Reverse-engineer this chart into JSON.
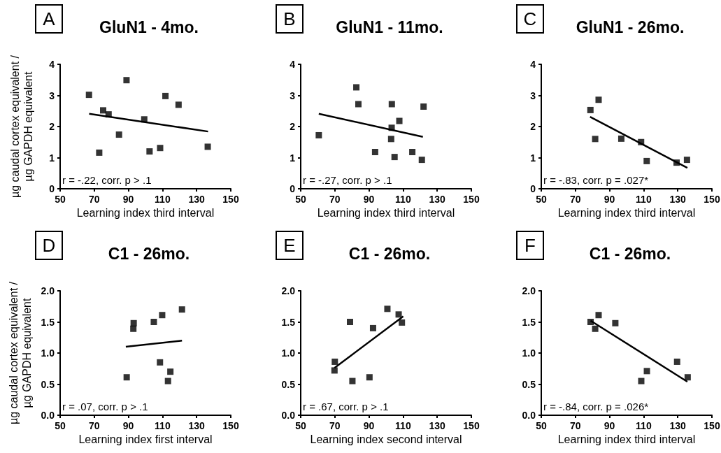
{
  "chart_data": [
    {
      "type": "scatter",
      "title": "GluN1 - 4mo.",
      "xlabel": "Learning index third interval",
      "ylabel": "µg caudal cortex equivalent / µg GAPDH equivalent",
      "annotations": [
        "A",
        "r = -.22, corr. p > .1"
      ],
      "xlim": [
        50,
        150
      ],
      "xticks": [
        50,
        70,
        90,
        110,
        130,
        150
      ],
      "ylim": [
        0,
        4
      ],
      "yticks": [
        0,
        1,
        2,
        3,
        4
      ],
      "marker": "square",
      "series": [
        {
          "color": "#000000",
          "x": [
            66.9,
            72.9,
            75.2,
            78.4,
            84.5,
            88.9,
            99.3,
            102.4,
            108.6,
            111.7,
            119.4,
            136.5
          ],
          "values": [
            3.02,
            1.16,
            2.52,
            2.39,
            1.74,
            3.49,
            2.23,
            1.2,
            1.31,
            2.98,
            2.7,
            1.35
          ]
        },
        {
          "type": "line",
          "marker": "none",
          "color": "#000000",
          "x": [
            67,
            136.7
          ],
          "values": [
            2.41,
            1.84
          ]
        }
      ]
    },
    {
      "type": "scatter",
      "title": "GluN1 - 11mo.",
      "xlabel": "Learning index third interval",
      "annotations": [
        "B",
        "r = -.27, corr. p > .1"
      ],
      "xlim": [
        50,
        150
      ],
      "xticks": [
        50,
        70,
        90,
        110,
        130,
        150
      ],
      "ylim": [
        0,
        4
      ],
      "yticks": [
        0,
        1,
        2,
        3,
        4
      ],
      "marker": "square",
      "series": [
        {
          "color": "#000000",
          "x": [
            60.6,
            82.6,
            83.8,
            93.6,
            103.3,
            103.4,
            103,
            105,
            107.8,
            115.4,
            121,
            122
          ],
          "values": [
            1.72,
            3.26,
            2.72,
            1.18,
            1.96,
            2.72,
            1.6,
            1.02,
            2.18,
            1.18,
            0.93,
            2.64
          ]
        },
        {
          "type": "line",
          "marker": "none",
          "color": "#000000",
          "x": [
            60.6,
            121.6
          ],
          "values": [
            2.41,
            1.67
          ]
        }
      ]
    },
    {
      "type": "scatter",
      "title": "GluN1 - 26mo.",
      "xlabel": "Learning index third interval",
      "annotations": [
        "C",
        "r = -.83, corr. p = .027*"
      ],
      "xlim": [
        50,
        150
      ],
      "xticks": [
        50,
        70,
        90,
        110,
        130,
        150
      ],
      "ylim": [
        0,
        4
      ],
      "yticks": [
        0,
        1,
        2,
        3,
        4
      ],
      "marker": "square",
      "series": [
        {
          "color": "#000000",
          "x": [
            78.8,
            81.6,
            83.6,
            96.9,
            108.5,
            111.8,
            129.3,
            135.4
          ],
          "values": [
            2.53,
            1.6,
            2.86,
            1.61,
            1.5,
            0.89,
            0.84,
            0.93
          ]
        },
        {
          "type": "line",
          "marker": "none",
          "color": "#000000",
          "x": [
            78.6,
            135.6
          ],
          "values": [
            2.31,
            0.67
          ]
        }
      ]
    },
    {
      "type": "scatter",
      "title": "C1 - 26mo.",
      "xlabel": "Learning index first interval",
      "ylabel": "µg caudal cortex equivalent / µg GAPDH equivalent",
      "annotations": [
        "D",
        "r = .07, corr. p > .1"
      ],
      "xlim": [
        50,
        150
      ],
      "xticks": [
        50,
        70,
        90,
        110,
        130,
        150
      ],
      "ylim": [
        0,
        2
      ],
      "yticks": [
        {
          "value": 0,
          "label": "0.0"
        },
        {
          "value": 0.5,
          "label": "0.5"
        },
        {
          "value": 1,
          "label": "1.0"
        },
        {
          "value": 1.5,
          "label": "1.5"
        },
        {
          "value": 2,
          "label": "2.0"
        }
      ],
      "marker": "square",
      "series": [
        {
          "color": "#000000",
          "x": [
            89,
            93.1,
            92.9,
            104.9,
            109.8,
            108.5,
            114.6,
            113.2,
            121.4
          ],
          "values": [
            0.61,
            1.48,
            1.39,
            1.5,
            1.61,
            0.85,
            0.7,
            0.55,
            1.7
          ]
        },
        {
          "type": "line",
          "marker": "none",
          "color": "#000000",
          "x": [
            88.5,
            121.4
          ],
          "values": [
            1.1,
            1.2
          ]
        }
      ]
    },
    {
      "type": "scatter",
      "title": "C1 - 26mo.",
      "xlabel": "Learning index second interval",
      "annotations": [
        "E",
        "r = .67, corr. p > .1"
      ],
      "xlim": [
        50,
        150
      ],
      "xticks": [
        50,
        70,
        90,
        110,
        130,
        150
      ],
      "ylim": [
        0,
        2
      ],
      "yticks": [
        {
          "value": 0,
          "label": "0.0"
        },
        {
          "value": 0.5,
          "label": "0.5"
        },
        {
          "value": 1,
          "label": "1.0"
        },
        {
          "value": 1.5,
          "label": "1.5"
        },
        {
          "value": 2,
          "label": "2.0"
        }
      ],
      "marker": "square",
      "series": [
        {
          "color": "#000000",
          "x": [
            69.8,
            70,
            78.9,
            80.3,
            90.3,
            92.4,
            100.8,
            107.4,
            109.3
          ],
          "values": [
            0.72,
            0.86,
            1.5,
            0.55,
            0.61,
            1.4,
            1.71,
            1.62,
            1.49
          ]
        },
        {
          "type": "line",
          "marker": "none",
          "color": "#000000",
          "x": [
            69.8,
            110.1
          ],
          "values": [
            0.76,
            1.59
          ]
        }
      ]
    },
    {
      "type": "scatter",
      "title": "C1 - 26mo.",
      "xlabel": "Learning index third interval",
      "annotations": [
        "F",
        "r = -.84, corr. p = .026*"
      ],
      "xlim": [
        50,
        150
      ],
      "xticks": [
        50,
        70,
        90,
        110,
        130,
        150
      ],
      "ylim": [
        0,
        2
      ],
      "yticks": [
        {
          "value": 0,
          "label": "0.0"
        },
        {
          "value": 0.5,
          "label": "0.5"
        },
        {
          "value": 1,
          "label": "1.0"
        },
        {
          "value": 1.5,
          "label": "1.5"
        },
        {
          "value": 2,
          "label": "2.0"
        }
      ],
      "marker": "square",
      "series": [
        {
          "color": "#000000",
          "x": [
            78.9,
            81.6,
            83.6,
            93.4,
            108.6,
            111.9,
            129.6,
            135.8
          ],
          "values": [
            1.5,
            1.39,
            1.61,
            1.48,
            0.55,
            0.71,
            0.86,
            0.61
          ]
        },
        {
          "type": "line",
          "marker": "none",
          "color": "#000000",
          "x": [
            78.9,
            135.6
          ],
          "values": [
            1.52,
            0.54
          ]
        }
      ]
    }
  ]
}
